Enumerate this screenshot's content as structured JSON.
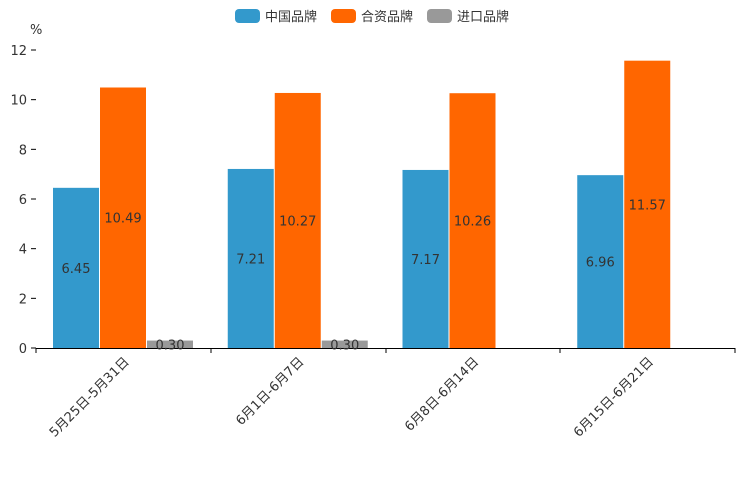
{
  "chart_data": {
    "type": "bar",
    "categories": [
      "5月25日-5月31日",
      "6月1日-6月7日",
      "6月8日-6月14日",
      "6月15日-6月21日"
    ],
    "series": [
      {
        "name": "中国品牌",
        "values": [
          6.45,
          7.21,
          7.17,
          6.96
        ],
        "labels": [
          "6.45",
          "7.21",
          "7.17",
          "6.96"
        ],
        "color": "#3399cc"
      },
      {
        "name": "合资品牌",
        "values": [
          10.49,
          10.27,
          10.26,
          11.57
        ],
        "labels": [
          "10.49",
          "10.27",
          "10.26",
          "11.57"
        ],
        "color": "#ff6600"
      },
      {
        "name": "进口品牌",
        "values": [
          0.3,
          0.3,
          null,
          null
        ],
        "labels": [
          "0.30",
          "0.30",
          "",
          ""
        ],
        "color": "#999999"
      }
    ],
    "ylabel": "%",
    "ylim": [
      0,
      12
    ],
    "yticks": [
      0,
      2,
      4,
      6,
      8,
      10,
      12
    ],
    "legend_position": "top-center"
  }
}
